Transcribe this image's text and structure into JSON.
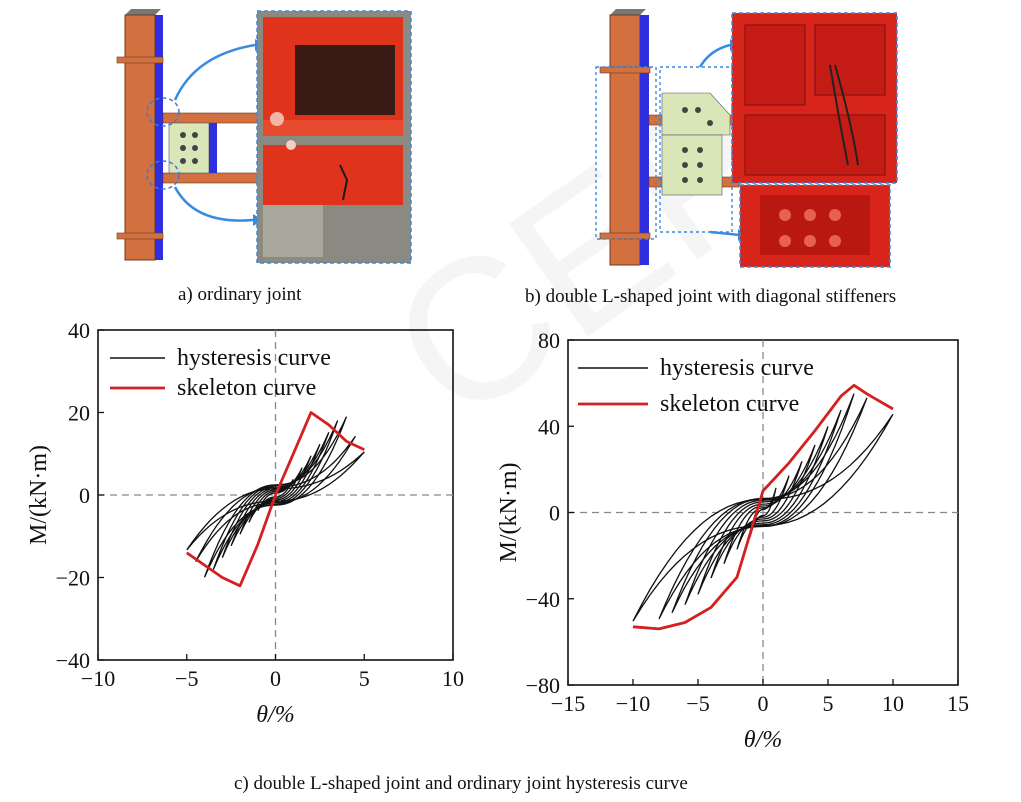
{
  "captions": {
    "a": "a) ordinary joint",
    "b": "b) double L-shaped joint with diagonal stiffeners",
    "c": "c) double L-shaped joint and ordinary joint hysteresis curve"
  },
  "chart_data": [
    {
      "type": "line",
      "xlabel": "θ/%",
      "ylabel": "M/(kN·m)",
      "xlim": [
        -10,
        10
      ],
      "ylim": [
        -40,
        40
      ],
      "xticks": [
        -10,
        -5,
        0,
        5,
        10
      ],
      "yticks": [
        -40,
        -20,
        0,
        20,
        40
      ],
      "legend": {
        "placement": "top-left",
        "entries": [
          "hysteresis curve",
          "skeleton curve"
        ]
      },
      "reference_lines": {
        "x": 0,
        "y": 0,
        "style": "dashed"
      },
      "series": [
        {
          "name": "hysteresis curve",
          "color": "#111111",
          "loop_amplitudes": [
            1,
            1.5,
            2,
            2.5,
            3,
            3.5,
            4,
            4.5,
            5
          ],
          "loop_peaks_pos": [
            4,
            7,
            10,
            13,
            16,
            19,
            20,
            15,
            11
          ],
          "loop_peaks_neg": [
            -4,
            -7,
            -10,
            -13,
            -16,
            -19,
            -21,
            -17,
            -14
          ]
        },
        {
          "name": "skeleton curve",
          "color": "#d42020",
          "x": [
            -5,
            -4,
            -3,
            -2,
            -1,
            0,
            1,
            2,
            3,
            4,
            5
          ],
          "y": [
            -14,
            -17,
            -20,
            -22,
            -12,
            0,
            10,
            20,
            17,
            13,
            11
          ]
        }
      ]
    },
    {
      "type": "line",
      "xlabel": "θ/%",
      "ylabel": "M/(kN·m)",
      "xlim": [
        -15,
        15
      ],
      "ylim": [
        -80,
        80
      ],
      "xticks": [
        -15,
        -10,
        -5,
        0,
        5,
        10,
        15
      ],
      "yticks": [
        -80,
        -40,
        0,
        40,
        80
      ],
      "legend": {
        "placement": "top-left",
        "entries": [
          "hysteresis curve",
          "skeleton curve"
        ]
      },
      "reference_lines": {
        "x": 0,
        "y": 0,
        "style": "dashed"
      },
      "series": [
        {
          "name": "hysteresis curve",
          "color": "#111111",
          "loop_amplitudes": [
            1,
            2,
            3,
            4,
            5,
            6,
            7,
            8,
            10
          ],
          "loop_peaks_pos": [
            12,
            18,
            25,
            33,
            42,
            50,
            58,
            56,
            48
          ],
          "loop_peaks_neg": [
            -12,
            -18,
            -25,
            -32,
            -40,
            -45,
            -49,
            -52,
            -53
          ]
        },
        {
          "name": "skeleton curve",
          "color": "#d42020",
          "x": [
            -10,
            -8,
            -6,
            -4,
            -2,
            0,
            2,
            4,
            6,
            7,
            8,
            10
          ],
          "y": [
            -53,
            -54,
            -51,
            -44,
            -30,
            10,
            23,
            38,
            54,
            59,
            55,
            48
          ]
        }
      ]
    }
  ],
  "images": {
    "a": {
      "name": "ordinary-joint-photo",
      "member_color": "#d2703f",
      "plate_color": "#2f2fe0",
      "detail_color": "#e0331c"
    },
    "b": {
      "name": "double-l-joint-photo",
      "member_color": "#d2703f",
      "plate_color": "#2f2fe0",
      "stiffener_color": "#d8e6b8",
      "detail_color": "#d8251c"
    }
  }
}
